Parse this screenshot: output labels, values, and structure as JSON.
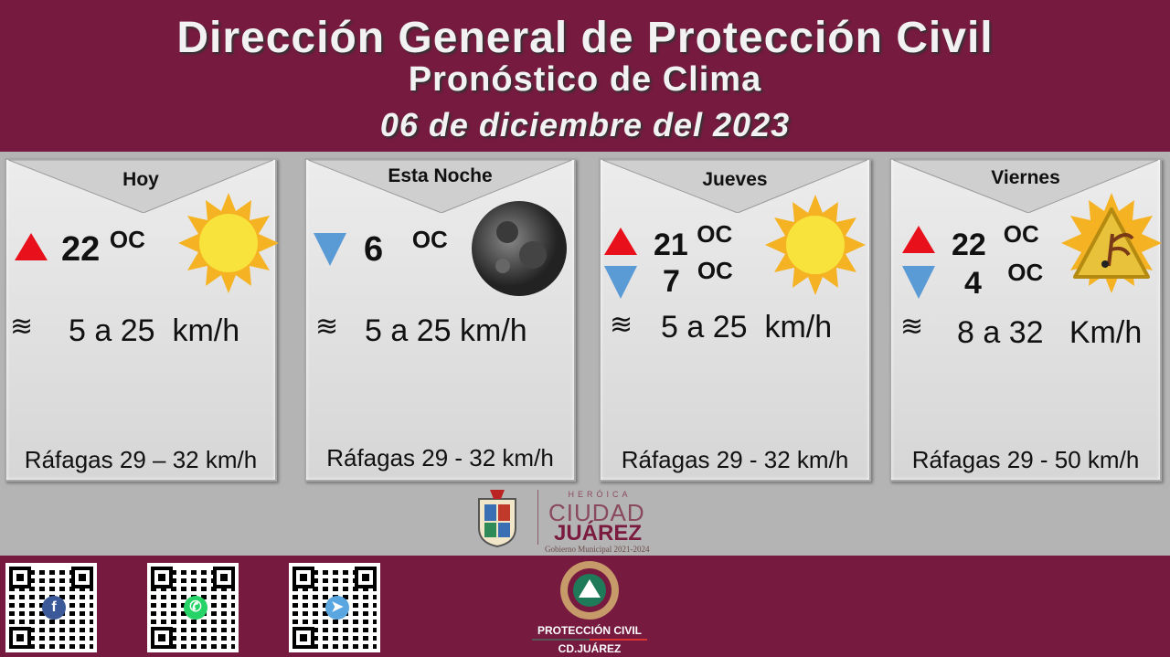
{
  "header": {
    "title": "Dirección General de Protección Civil",
    "subtitle": "Pronóstico de Clima",
    "date": "06 de diciembre del 2023"
  },
  "cards": [
    {
      "label": "Hoy",
      "high": "22",
      "low": null,
      "unit": "OC",
      "wind": "5 a 25",
      "wind_unit": "km/h",
      "gusts": "Ráfagas 29 – 32 km/h",
      "icon": "sun-icon"
    },
    {
      "label": "Esta Noche",
      "high": null,
      "low": "6",
      "unit": "OC",
      "wind": "5 a 25",
      "wind_unit": "km/h",
      "gusts": "Ráfagas 29 - 32 km/h",
      "icon": "moon-icon"
    },
    {
      "label": "Jueves",
      "high": "21",
      "low": "7",
      "unit": "OC",
      "wind": "5 a 25",
      "wind_unit": "km/h",
      "gusts": "Ráfagas 29 - 32 km/h",
      "icon": "sun-icon"
    },
    {
      "label": "Viernes",
      "high": "22",
      "low": "4",
      "unit": "OC",
      "wind": "8 a 32",
      "wind_unit": "Km/h",
      "gusts": "Ráfagas 29 - 50 km/h",
      "icon": "wind-warning-icon"
    }
  ],
  "logos": {
    "city": {
      "line1": "HERÓICA",
      "line2": "CIUDAD",
      "line3": "JUÁREZ",
      "line4": "Gobierno Municipal 2021-2024"
    },
    "pc": {
      "line1": "PROTECCIÓN CIVIL",
      "line2": "CD.JUÁREZ"
    }
  },
  "qr_codes": [
    {
      "icon": "facebook-icon"
    },
    {
      "icon": "whatsapp-icon"
    },
    {
      "icon": "telegram-icon"
    }
  ],
  "colors": {
    "brand": "#761a3f",
    "high": "#e8101a",
    "low": "#5b9bd5"
  }
}
